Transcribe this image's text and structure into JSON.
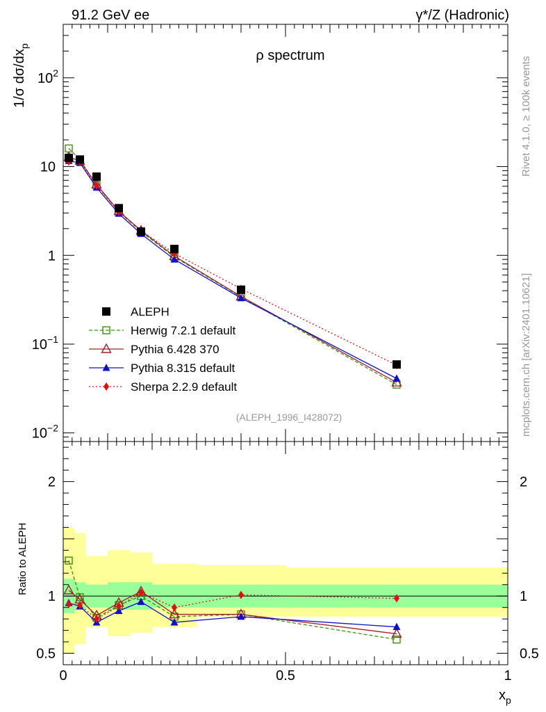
{
  "header": {
    "left": "91.2 GeV ee",
    "right": "γ*/Z (Hadronic)"
  },
  "side_labels": {
    "rivet": "Rivet 4.1.0, ≥ 100k events",
    "mcplots": "mcplots.cern.ch [arXiv:2401.10621]"
  },
  "chart_data": {
    "type": "line",
    "title": "ρ spectrum",
    "analysis_id": "(ALEPH_1996_I428072)",
    "xlabel": "x",
    "xlabel_sub": "p",
    "ylabel_main": "1/σ  dσ/dx",
    "ylabel_main_sub": "p",
    "ylabel_ratio": "Ratio to ALEPH",
    "xlim": [
      0,
      1
    ],
    "ylim_main": [
      0.008,
      400
    ],
    "ylim_ratio": [
      0.4,
      2.35
    ],
    "yscale": "log",
    "x_tick_labels": [
      "0",
      "0.5",
      "1"
    ],
    "main_tick_labels": [
      {
        "value": 0.01,
        "base": "10",
        "exp": "−2"
      },
      {
        "value": 0.1,
        "base": "10",
        "exp": "−1"
      },
      {
        "value": 1,
        "base": "1",
        "exp": ""
      },
      {
        "value": 10,
        "base": "10",
        "exp": ""
      },
      {
        "value": 100,
        "base": "10",
        "exp": "2"
      }
    ],
    "ratio_tick_labels": [
      {
        "value": 0.5,
        "label": "0.5"
      },
      {
        "value": 1,
        "label": "1"
      },
      {
        "value": 2,
        "label": "2"
      }
    ],
    "legend_position": "middle-left",
    "bin_edges": [
      0,
      0.025,
      0.05,
      0.1,
      0.15,
      0.2,
      0.3,
      0.5,
      1.0
    ],
    "band_green_halfwidth": [
      0.15,
      0.12,
      0.1,
      0.12,
      0.12,
      0.1,
      0.1,
      0.1
    ],
    "band_yellow_lo": [
      0.5,
      0.58,
      0.73,
      0.65,
      0.68,
      0.73,
      0.82,
      0.82
    ],
    "band_yellow_hi": [
      1.6,
      1.55,
      1.35,
      1.4,
      1.38,
      1.28,
      1.27,
      1.25
    ],
    "data": {
      "name": "ALEPH",
      "x": [
        0.0125,
        0.0375,
        0.075,
        0.125,
        0.175,
        0.25,
        0.4,
        0.75
      ],
      "y": [
        12.5,
        12.0,
        7.7,
        3.4,
        1.85,
        1.18,
        0.41,
        0.059
      ]
    },
    "series": [
      {
        "name": "Herwig 7.2.1 default",
        "color": "#3d8f0f",
        "marker": "open-square",
        "dash": "5,3",
        "x": [
          0.0125,
          0.0375,
          0.075,
          0.125,
          0.175,
          0.25,
          0.4,
          0.75
        ],
        "y": [
          16.0,
          12.0,
          6.2,
          3.1,
          1.85,
          0.96,
          0.34,
          0.035
        ],
        "ratio": [
          1.31,
          0.99,
          0.81,
          0.92,
          1.0,
          0.82,
          0.84,
          0.62
        ]
      },
      {
        "name": "Pythia 6.428 370",
        "color": "#a0202a",
        "marker": "open-triangle",
        "dash": "",
        "x": [
          0.0125,
          0.0375,
          0.075,
          0.125,
          0.175,
          0.25,
          0.4,
          0.75
        ],
        "y": [
          12.8,
          11.6,
          6.3,
          3.15,
          1.9,
          0.98,
          0.345,
          0.037
        ],
        "ratio": [
          1.05,
          0.97,
          0.83,
          0.94,
          1.04,
          0.84,
          0.84,
          0.67
        ]
      },
      {
        "name": "Pythia 8.315 default",
        "color": "#1010cc",
        "marker": "filled-triangle",
        "dash": "",
        "x": [
          0.0125,
          0.0375,
          0.075,
          0.125,
          0.175,
          0.25,
          0.4,
          0.75
        ],
        "y": [
          11.6,
          11.0,
          5.8,
          2.95,
          1.75,
          0.9,
          0.33,
          0.041
        ],
        "ratio": [
          0.94,
          0.91,
          0.77,
          0.87,
          0.95,
          0.77,
          0.82,
          0.73
        ]
      },
      {
        "name": "Sherpa 2.2.9 default",
        "color": "#e01010",
        "marker": "filled-diamond",
        "dash": "2,3",
        "x": [
          0.0125,
          0.0375,
          0.075,
          0.125,
          0.175,
          0.25,
          0.4,
          0.75
        ],
        "y": [
          11.4,
          11.2,
          6.1,
          3.1,
          1.9,
          1.05,
          0.42,
          0.058
        ],
        "ratio": [
          0.93,
          0.92,
          0.8,
          0.91,
          1.03,
          0.9,
          1.01,
          0.98
        ]
      }
    ]
  }
}
